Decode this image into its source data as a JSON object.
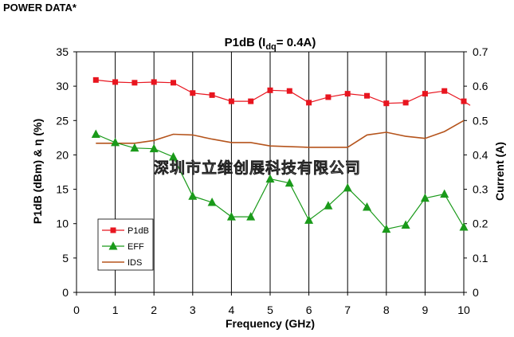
{
  "header": {
    "text": "POWER DATA*"
  },
  "chart_data": {
    "type": "line",
    "title_main": "P1dB (I",
    "title_sub": "dq",
    "title_tail": "= 0.4A)",
    "xlabel": "Frequency (GHz)",
    "ylabel_left": "P1dB (dBm) & η (%)",
    "ylabel_right": "Current (A)",
    "xlim": [
      0,
      10
    ],
    "ylim_left": [
      0,
      35
    ],
    "ylim_right": [
      0,
      0.7
    ],
    "x_ticks": [
      "0",
      "1",
      "2",
      "3",
      "4",
      "5",
      "6",
      "7",
      "8",
      "9",
      "10"
    ],
    "y_left_ticks": [
      "0",
      "5",
      "10",
      "15",
      "20",
      "25",
      "30",
      "35"
    ],
    "y_right_ticks": [
      "0",
      "0.1",
      "0.2",
      "0.3",
      "0.4",
      "0.5",
      "0.6",
      "0.7"
    ],
    "grid": "vertical",
    "legend_position": "lower-left",
    "watermark": "深圳市立维创展科技有限公司",
    "series": [
      {
        "name": "P1dB",
        "axis": "left",
        "color": "#e8151f",
        "marker": "square",
        "x": [
          0.5,
          1.0,
          1.5,
          2.0,
          2.5,
          3.0,
          3.5,
          4.0,
          4.5,
          5.0,
          5.5,
          6.0,
          6.5,
          7.0,
          7.5,
          8.0,
          8.5,
          9.0,
          9.5,
          10.0
        ],
        "values": [
          30.9,
          30.6,
          30.5,
          30.6,
          30.5,
          29.0,
          28.7,
          27.8,
          27.8,
          29.4,
          29.3,
          27.6,
          28.4,
          28.9,
          28.6,
          27.5,
          27.6,
          28.9,
          29.3,
          27.8
        ]
      },
      {
        "name": "EFF",
        "axis": "left",
        "color": "#1a9a1a",
        "marker": "triangle",
        "x": [
          0.5,
          1.0,
          1.5,
          2.0,
          2.5,
          3.0,
          3.5,
          4.0,
          4.5,
          5.0,
          5.5,
          6.0,
          6.5,
          7.0,
          7.5,
          8.0,
          8.5,
          9.0,
          9.5,
          10.0
        ],
        "values": [
          23.0,
          21.8,
          21.0,
          20.9,
          19.7,
          14.0,
          13.1,
          11.0,
          11.0,
          16.5,
          15.9,
          10.5,
          12.6,
          15.2,
          12.4,
          9.2,
          9.8,
          13.7,
          14.3,
          9.5
        ]
      },
      {
        "name": "IDS",
        "axis": "right",
        "color": "#b5541c",
        "marker": "none",
        "x": [
          0.5,
          1.0,
          1.5,
          2.0,
          2.5,
          3.0,
          3.5,
          4.0,
          4.5,
          5.0,
          5.5,
          6.0,
          6.5,
          7.0,
          7.5,
          8.0,
          8.5,
          9.0,
          9.5,
          10.0
        ],
        "values": [
          0.434,
          0.434,
          0.434,
          0.442,
          0.46,
          0.458,
          0.446,
          0.436,
          0.436,
          0.426,
          0.424,
          0.422,
          0.422,
          0.422,
          0.458,
          0.466,
          0.454,
          0.448,
          0.468,
          0.5
        ]
      }
    ]
  }
}
